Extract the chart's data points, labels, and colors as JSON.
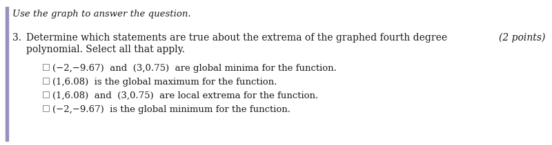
{
  "header": "Use the graph to answer the question.",
  "question_number": "3.",
  "question_line1": "Determine which statements are true about the extrema of the graphed fourth degree",
  "question_line2": "polynomial. Select all that apply.",
  "points_text": "(2 points)",
  "options": [
    "(−2,−9.67)  and  (3,0.75)  are global minima for the function.",
    "(1,6.08)  is the global maximum for the function.",
    "(1,6.08)  and  (3,0.75)  are local extrema for the function.",
    "(−2,−9.67)  is the global minimum for the function."
  ],
  "background_color": "#ffffff",
  "text_color": "#1a1a1a",
  "font_size_header": 9.5,
  "font_size_question": 10,
  "font_size_options": 9.5,
  "font_size_points": 10,
  "left_bar_color": "#9b8fc0",
  "checkbox_color": "#888888"
}
